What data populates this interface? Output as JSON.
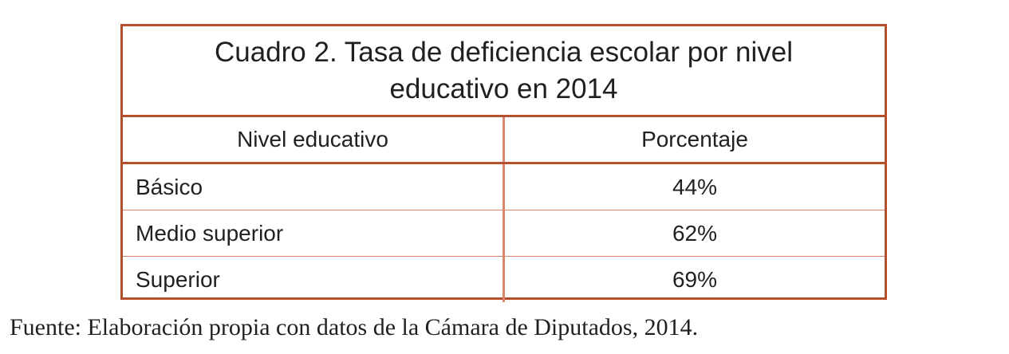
{
  "table": {
    "title": "Cuadro 2. Tasa de deficiencia escolar por nivel educativo en 2014",
    "columns": [
      "Nivel educativo",
      "Porcentaje"
    ],
    "rows": [
      {
        "nivel": "Básico",
        "porcentaje": "44%"
      },
      {
        "nivel": "Medio superior",
        "porcentaje": "62%"
      },
      {
        "nivel": "Superior",
        "porcentaje": "69%"
      }
    ],
    "border_color": "#b5502d",
    "inner_line_color": "#d9866a"
  },
  "source": "Fuente: Elaboración propia con datos de la Cámara de Diputados, 2014."
}
